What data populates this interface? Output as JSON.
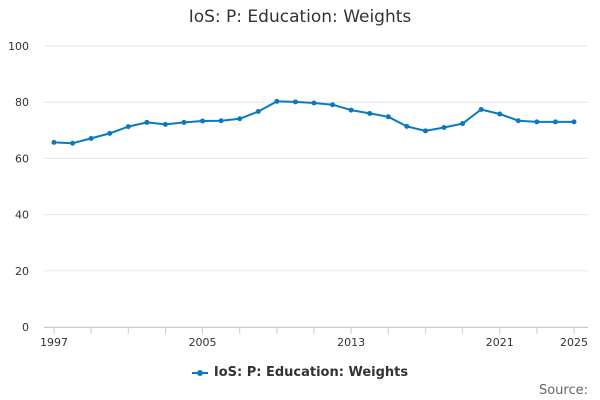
{
  "colors": {
    "series": "#0a7abf",
    "grid": "#e6e6e6",
    "axis": "#cccccc"
  },
  "legend": {
    "placement": "bottom-center"
  },
  "footer": {
    "source_label": "Source:"
  },
  "chart_data": {
    "type": "line",
    "title": "IoS: P: Education: Weights",
    "xlabel": "",
    "ylabel": "",
    "xlim": [
      1997,
      2025
    ],
    "ylim": [
      0,
      100
    ],
    "yticks": [
      0,
      20,
      40,
      60,
      80,
      100
    ],
    "xticks": [
      1997,
      2005,
      2013,
      2021,
      2025
    ],
    "xtick_labels": [
      "1997",
      "2005",
      "2013",
      "2021",
      "2025"
    ],
    "grid": "horizontal",
    "series": [
      {
        "name": "IoS: P: Education: Weights",
        "x": [
          1997,
          1998,
          1999,
          2000,
          2001,
          2002,
          2003,
          2004,
          2005,
          2006,
          2007,
          2008,
          2009,
          2010,
          2011,
          2012,
          2013,
          2014,
          2015,
          2016,
          2017,
          2018,
          2019,
          2020,
          2021,
          2022,
          2023,
          2024,
          2025
        ],
        "values": [
          65.7,
          65.4,
          67.1,
          68.9,
          71.3,
          72.8,
          72.1,
          72.8,
          73.3,
          73.4,
          74.1,
          76.7,
          80.3,
          80.1,
          79.7,
          79.1,
          77.2,
          76.0,
          74.8,
          71.4,
          69.8,
          71.0,
          72.4,
          77.4,
          75.8,
          73.4,
          73.0,
          73.0,
          73.0
        ]
      }
    ]
  }
}
